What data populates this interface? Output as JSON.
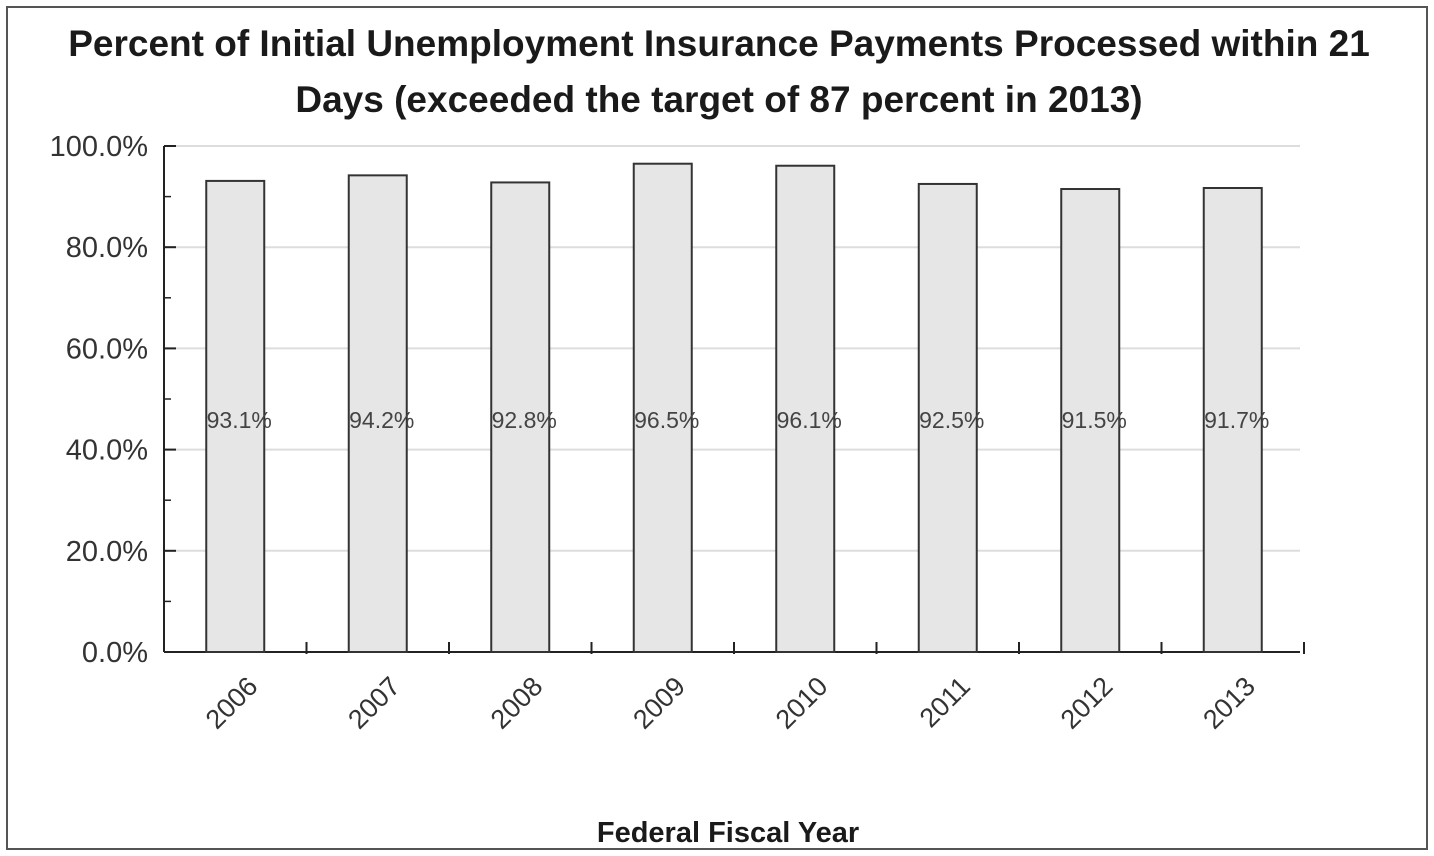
{
  "chart_data": {
    "type": "bar",
    "title": "Percent of Initial Unemployment Insurance Payments Processed within 21 Days (exceeded the target of 87 percent in 2013)",
    "title_lines": [
      "Percent of Initial Unemployment Insurance Payments Processed within 21",
      "Days (exceeded the target of 87 percent in 2013)"
    ],
    "xlabel": "Federal Fiscal Year",
    "ylabel": "",
    "categories": [
      "2006",
      "2007",
      "2008",
      "2009",
      "2010",
      "2011",
      "2012",
      "2013"
    ],
    "values": [
      93.1,
      94.2,
      92.8,
      96.5,
      96.1,
      92.5,
      91.5,
      91.7
    ],
    "data_labels": [
      "93.1%",
      "94.2%",
      "92.8%",
      "96.5%",
      "96.1%",
      "92.5%",
      "91.5%",
      "91.7%"
    ],
    "ylim": [
      0,
      100
    ],
    "yticks": [
      0,
      20,
      40,
      60,
      80,
      100
    ],
    "ytick_labels": [
      "0.0%",
      "20.0%",
      "40.0%",
      "60.0%",
      "80.0%",
      "100.0%"
    ],
    "grid": true,
    "legend": "none",
    "colors": {
      "bar_fill": "#e6e6e6",
      "bar_stroke": "#333333",
      "grid": "#dddddd",
      "axis": "#222222"
    }
  }
}
